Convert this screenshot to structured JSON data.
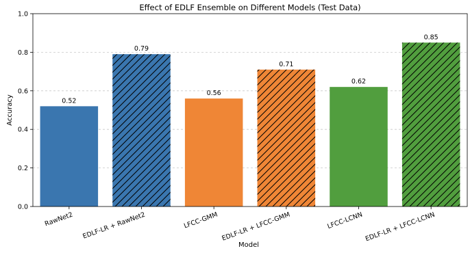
{
  "chart_data": {
    "type": "bar",
    "title": "Effect of EDLF Ensemble on Different Models (Test Data)",
    "xlabel": "Model",
    "ylabel": "Accuracy",
    "ylim": [
      0.0,
      1.0
    ],
    "yticks": [
      "0.0",
      "0.2",
      "0.4",
      "0.6",
      "0.8",
      "1.0"
    ],
    "grid": "y-dashed",
    "categories": [
      "RawNet2",
      "EDLF-LR + RawNet2",
      "LFCC-GMM",
      "EDLF-LR + LFCC-GMM",
      "LFCC-LCNN",
      "EDLF-LR + LFCC-LCNN"
    ],
    "values": [
      0.52,
      0.79,
      0.56,
      0.71,
      0.62,
      0.85
    ],
    "value_labels": [
      "0.52",
      "0.79",
      "0.56",
      "0.71",
      "0.62",
      "0.85"
    ],
    "colors": [
      "#3a76af",
      "#3a76af",
      "#ef8636",
      "#ef8636",
      "#519e3e",
      "#519e3e"
    ],
    "hatched": [
      false,
      true,
      false,
      true,
      false,
      true
    ]
  }
}
